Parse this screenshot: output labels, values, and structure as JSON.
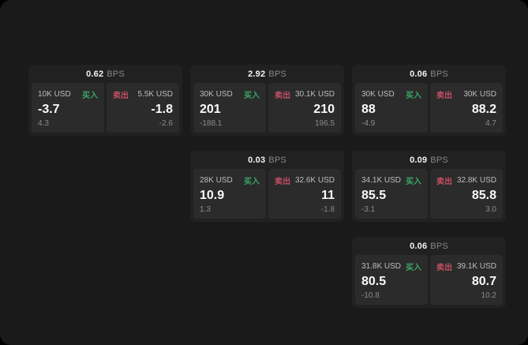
{
  "labels": {
    "bps": "BPS",
    "buy": "买入",
    "sell": "卖出"
  },
  "colors": {
    "outside_bg": "#000000",
    "window_bg": "#1a1a1a",
    "card_bg": "#212121",
    "panel_bg": "#2b2b2b",
    "buy_green": "#3aa765",
    "sell_red": "#c44f66",
    "price_text": "#fafafa",
    "muted_text": "#8b8b8b"
  },
  "cards": [
    {
      "bps": "0.62",
      "buy": {
        "amount": "10K USD",
        "price": "-3.7",
        "sub": "4.3"
      },
      "sell": {
        "amount": "5.5K USD",
        "price": "-1.8",
        "sub": "-2.6"
      }
    },
    {
      "bps": "2.92",
      "buy": {
        "amount": "30K USD",
        "price": "201",
        "sub": "-188.1"
      },
      "sell": {
        "amount": "30.1K USD",
        "price": "210",
        "sub": "196.5"
      }
    },
    {
      "bps": "0.06",
      "buy": {
        "amount": "30K USD",
        "price": "88",
        "sub": "-4.9"
      },
      "sell": {
        "amount": "30K USD",
        "price": "88.2",
        "sub": "4.7"
      }
    },
    {
      "bps": "0.03",
      "buy": {
        "amount": "28K USD",
        "price": "10.9",
        "sub": "1.3"
      },
      "sell": {
        "amount": "32.6K USD",
        "price": "11",
        "sub": "-1.8"
      }
    },
    {
      "bps": "0.09",
      "buy": {
        "amount": "34.1K USD",
        "price": "85.5",
        "sub": "-3.1"
      },
      "sell": {
        "amount": "32.8K USD",
        "price": "85.8",
        "sub": "3.0"
      }
    },
    {
      "bps": "0.06",
      "buy": {
        "amount": "31.8K USD",
        "price": "80.5",
        "sub": "-10.8"
      },
      "sell": {
        "amount": "39.1K USD",
        "price": "80.7",
        "sub": "10.2"
      }
    }
  ]
}
